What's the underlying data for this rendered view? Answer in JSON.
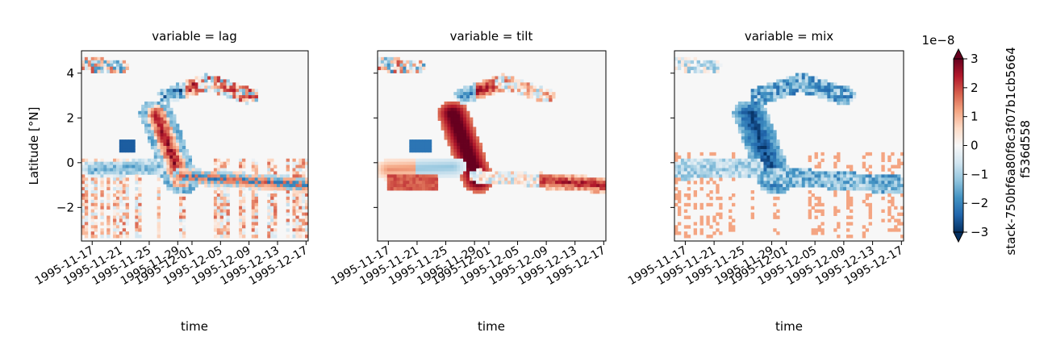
{
  "chart_data": {
    "type": "heatmap",
    "panels": [
      {
        "title": "variable = lag",
        "mode": "lag"
      },
      {
        "title": "variable = tilt",
        "mode": "tilt"
      },
      {
        "title": "variable = mix",
        "mode": "mix"
      }
    ],
    "xlabel": "time",
    "ylabel": "Latitude [°N]",
    "x_ticks": [
      "1995-11-17",
      "1995-11-21",
      "1995-11-25",
      "1995-11-29",
      "1995-12-01",
      "1995-12-05",
      "1995-12-09",
      "1995-12-13",
      "1995-12-17"
    ],
    "x_tick_days": [
      0,
      4,
      8,
      12,
      14,
      18,
      22,
      26,
      30
    ],
    "xlim_days": [
      -1.5,
      30.3
    ],
    "y_ticks": [
      4,
      2,
      0,
      -2
    ],
    "y_tick_labels": [
      "4",
      "2",
      "0",
      "−2"
    ],
    "ylim": [
      -3.5,
      5.0
    ],
    "colorbar": {
      "label_line1": "stack-750bf6a80f8c3f07b1cb5664",
      "label_line2": "f536d558",
      "scale_text": "1e−8",
      "ticks": [
        3,
        2,
        1,
        0,
        -1,
        -2,
        -3
      ],
      "tick_labels": [
        "3",
        "2",
        "1",
        "0",
        "−1",
        "−2",
        "−3"
      ],
      "vmin": -3,
      "vmax": 3,
      "colormap": "RdBu_r",
      "extend": "both"
    },
    "colors": {
      "dark_red": "#67001f",
      "red": "#d6604d",
      "light_red": "#f4a582",
      "neutral": "#f7f7f7",
      "light_blue": "#92c5de",
      "blue": "#4393c3",
      "dark_blue": "#053061"
    }
  }
}
